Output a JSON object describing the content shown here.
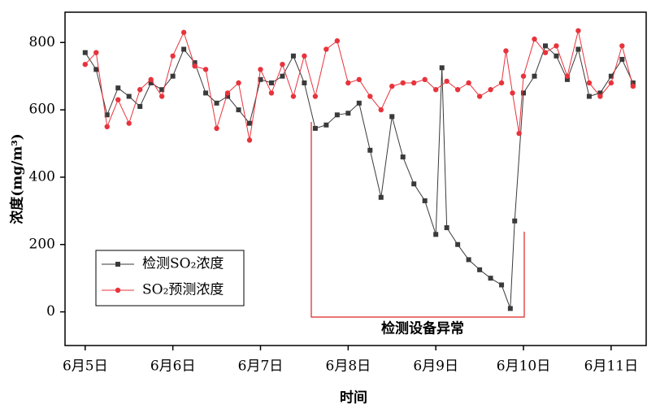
{
  "chart_data": {
    "type": "line",
    "xlabel": "时间",
    "ylabel": "浓度(mg/m³)",
    "annotation": "检测设备异常",
    "xlim": [
      -0.23,
      6.4
    ],
    "ylim": [
      -100,
      890
    ],
    "xticks": [
      {
        "value": 0,
        "label": "6月5日"
      },
      {
        "value": 1,
        "label": "6月6日"
      },
      {
        "value": 2,
        "label": "6月7日"
      },
      {
        "value": 3,
        "label": "6月8日"
      },
      {
        "value": 4,
        "label": "6月9日"
      },
      {
        "value": 5,
        "label": "6月10日"
      },
      {
        "value": 6,
        "label": "6月11日"
      }
    ],
    "yticks": [
      0,
      200,
      400,
      600,
      800
    ],
    "legend": "lower left",
    "series": [
      {
        "name": "检测SO₂浓度",
        "color": "#3a3a3a",
        "marker": "square",
        "x": [
          0,
          0.125,
          0.25,
          0.375,
          0.5,
          0.625,
          0.75,
          0.875,
          1,
          1.125,
          1.25,
          1.375,
          1.5,
          1.625,
          1.75,
          1.875,
          2,
          2.125,
          2.25,
          2.375,
          2.5,
          2.625,
          2.75,
          2.875,
          3,
          3.125,
          3.25,
          3.375,
          3.5,
          3.625,
          3.75,
          3.875,
          4,
          4.07,
          4.125,
          4.25,
          4.375,
          4.5,
          4.625,
          4.75,
          4.85,
          4.9,
          5,
          5.125,
          5.25,
          5.375,
          5.5,
          5.625,
          5.75,
          5.875,
          6,
          6.125,
          6.25
        ],
        "values": [
          770,
          720,
          585,
          665,
          640,
          610,
          680,
          660,
          700,
          780,
          740,
          650,
          620,
          640,
          600,
          560,
          690,
          680,
          700,
          760,
          680,
          545,
          555,
          585,
          590,
          620,
          480,
          340,
          580,
          460,
          380,
          330,
          230,
          725,
          250,
          200,
          155,
          125,
          100,
          80,
          10,
          270,
          650,
          700,
          790,
          760,
          690,
          780,
          640,
          650,
          700,
          750,
          680
        ]
      },
      {
        "name": "SO₂预测浓度",
        "color": "#e8333c",
        "marker": "circle",
        "x": [
          0,
          0.125,
          0.25,
          0.375,
          0.5,
          0.625,
          0.75,
          0.875,
          1,
          1.125,
          1.25,
          1.375,
          1.5,
          1.625,
          1.75,
          1.875,
          2,
          2.125,
          2.25,
          2.375,
          2.5,
          2.625,
          2.75,
          2.875,
          3,
          3.125,
          3.25,
          3.375,
          3.5,
          3.625,
          3.75,
          3.875,
          4,
          4.125,
          4.25,
          4.375,
          4.5,
          4.625,
          4.75,
          4.8,
          4.875,
          4.95,
          5,
          5.125,
          5.25,
          5.375,
          5.5,
          5.625,
          5.75,
          5.875,
          6,
          6.125,
          6.25
        ],
        "values": [
          735,
          770,
          550,
          630,
          560,
          660,
          690,
          640,
          760,
          830,
          730,
          720,
          545,
          650,
          680,
          510,
          720,
          650,
          735,
          640,
          760,
          640,
          780,
          805,
          680,
          690,
          640,
          600,
          670,
          680,
          680,
          690,
          660,
          685,
          660,
          680,
          640,
          660,
          680,
          775,
          650,
          530,
          700,
          810,
          770,
          790,
          700,
          835,
          680,
          640,
          680,
          790,
          670
        ]
      }
    ]
  }
}
